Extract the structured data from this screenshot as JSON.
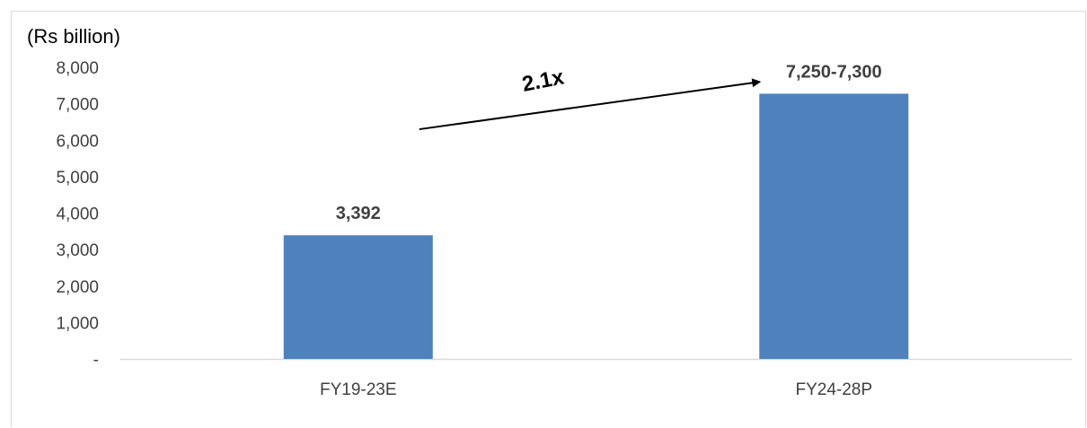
{
  "chart_data": {
    "type": "bar",
    "unit_label": "(Rs billion)",
    "categories": [
      "FY19-23E",
      "FY24-28P"
    ],
    "values": [
      3392,
      7275
    ],
    "data_labels": [
      "3,392",
      "7,250-7,300"
    ],
    "ylim": [
      0,
      8000
    ],
    "y_ticks": [
      0,
      1000,
      2000,
      3000,
      4000,
      5000,
      6000,
      7000,
      8000
    ],
    "y_tick_labels": [
      "-",
      "1,000",
      "2,000",
      "3,000",
      "4,000",
      "5,000",
      "6,000",
      "7,000",
      "8,000"
    ],
    "grid": false,
    "legend": "none",
    "annotation": {
      "text": "2.1x",
      "from_value": 6300,
      "to_value": 7600
    },
    "colors": {
      "bar": "#4f81bd",
      "axis": "#d9d9d9",
      "arrow": "#000000"
    }
  }
}
